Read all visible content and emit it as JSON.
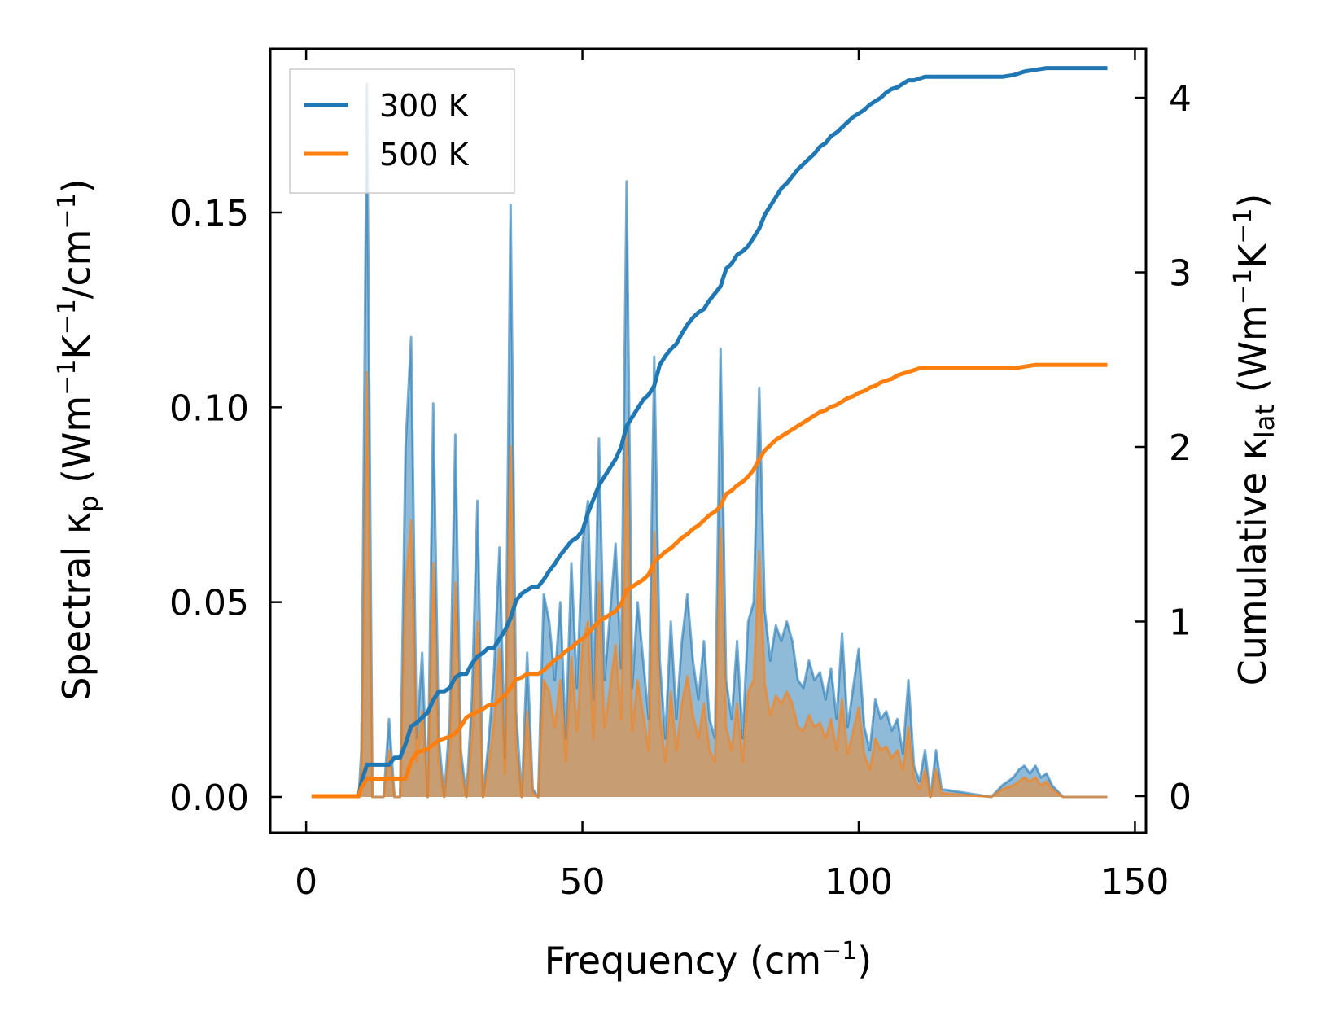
{
  "chart_data": {
    "type": "line",
    "xlabel_main": "Frequency (cm",
    "xlabel_sup": "−1",
    "xlabel_end": ")",
    "ylabel_left_prefix": "Spectral κ",
    "ylabel_left_sub": "p",
    "ylabel_left_mid": " (Wm",
    "ylabel_left_sup1": "−1",
    "ylabel_left_k": "K",
    "ylabel_left_sup2": "−1",
    "ylabel_left_slash": "/cm",
    "ylabel_left_sup3": "−1",
    "ylabel_left_end": ")",
    "ylabel_right_prefix": "Cumulative κ",
    "ylabel_right_sub": "lat",
    "ylabel_right_mid": " (Wm",
    "ylabel_right_sup1": "−1",
    "ylabel_right_k": "K",
    "ylabel_right_sup2": "−1",
    "ylabel_right_end": ")",
    "xlim": [
      -6.5,
      152
    ],
    "ylim_left": [
      -0.0092,
      0.192
    ],
    "ylim_right": [
      -0.21,
      4.28
    ],
    "xticks": [
      0,
      50,
      100,
      150
    ],
    "xtick_labels": [
      "0",
      "50",
      "100",
      "150"
    ],
    "yticks_left": [
      0,
      0.05,
      0.1,
      0.15
    ],
    "ytick_labels_left": [
      "0.00",
      "0.05",
      "0.10",
      "0.15"
    ],
    "yticks_right": [
      0,
      1,
      2,
      3,
      4
    ],
    "ytick_labels_right": [
      "0",
      "1",
      "2",
      "3",
      "4"
    ],
    "legend_position": "top-left",
    "series": [
      {
        "name": "300 K",
        "color": "#1f77b4",
        "spectral": {
          "x": [
            1,
            9.5,
            10,
            11,
            12,
            14,
            15,
            16,
            17,
            18,
            19,
            20,
            21,
            22,
            23,
            24,
            25,
            26,
            27,
            28,
            29,
            30,
            31,
            32,
            33,
            34,
            35,
            36,
            37,
            38,
            39,
            40,
            41,
            42,
            43,
            44,
            45,
            46,
            47,
            48,
            49,
            50,
            51,
            52,
            53,
            54,
            55,
            56,
            57,
            58,
            59,
            60,
            61,
            62,
            63,
            64,
            65,
            66,
            67,
            68,
            69,
            70,
            71,
            72,
            73,
            74,
            75,
            76,
            77,
            78,
            79,
            80,
            81,
            82,
            83,
            84,
            85,
            86,
            87,
            88,
            89,
            90,
            91,
            92,
            93,
            94,
            95,
            96,
            97,
            98,
            99,
            100,
            101,
            102,
            103,
            104,
            105,
            106,
            107,
            108,
            109,
            110,
            111,
            112,
            113,
            114,
            115,
            124,
            126,
            128,
            129,
            130,
            131,
            132,
            133,
            134,
            135,
            137,
            145
          ],
          "y": [
            0,
            0,
            0.012,
            0.183,
            0,
            0,
            0.02,
            0,
            0,
            0.09,
            0.118,
            0.015,
            0.037,
            0,
            0.101,
            0.015,
            0,
            0.02,
            0.093,
            0.012,
            0,
            0.025,
            0.076,
            0,
            0.014,
            0.032,
            0.064,
            0.01,
            0.152,
            0.022,
            0,
            0.037,
            0.002,
            0,
            0.052,
            0.045,
            0.03,
            0.05,
            0.015,
            0.06,
            0.028,
            0.065,
            0.076,
            0.025,
            0.092,
            0.03,
            0.047,
            0.065,
            0.033,
            0.158,
            0.028,
            0.05,
            0.035,
            0.02,
            0.113,
            0.035,
            0.015,
            0.045,
            0.02,
            0.04,
            0.052,
            0.035,
            0.025,
            0.04,
            0.02,
            0.015,
            0.115,
            0.03,
            0.02,
            0.04,
            0.015,
            0.045,
            0.05,
            0.105,
            0.048,
            0.035,
            0.044,
            0.04,
            0.045,
            0.04,
            0.03,
            0.028,
            0.035,
            0.03,
            0.032,
            0.025,
            0.033,
            0.02,
            0.042,
            0.018,
            0.028,
            0.038,
            0.018,
            0.012,
            0.025,
            0.02,
            0.022,
            0.017,
            0.02,
            0.011,
            0.03,
            0.008,
            0.004,
            0.012,
            0,
            0.012,
            0.002,
            0,
            0.003,
            0.005,
            0.007,
            0.008,
            0.006,
            0.008,
            0.005,
            0.006,
            0.003,
            0,
            0
          ]
        },
        "cumulative": {
          "x": [
            1,
            9.5,
            10,
            11,
            15,
            16,
            17,
            18,
            19,
            20,
            21,
            22,
            23,
            24,
            25,
            26,
            27,
            28,
            29,
            30,
            31,
            32,
            33,
            34,
            35,
            36,
            37,
            38,
            39,
            40,
            41,
            42,
            43,
            44,
            45,
            46,
            47,
            48,
            49,
            50,
            51,
            52,
            53,
            54,
            55,
            56,
            57,
            58,
            59,
            60,
            61,
            62,
            63,
            64,
            65,
            66,
            67,
            68,
            69,
            70,
            71,
            72,
            73,
            74,
            75,
            76,
            77,
            78,
            79,
            80,
            81,
            82,
            83,
            84,
            85,
            86,
            87,
            88,
            89,
            90,
            91,
            92,
            93,
            94,
            95,
            96,
            97,
            98,
            99,
            100,
            101,
            102,
            103,
            104,
            105,
            106,
            107,
            108,
            109,
            110,
            111,
            112,
            113,
            114,
            115,
            124,
            126,
            128,
            130,
            132,
            134,
            136,
            145
          ],
          "y": [
            0,
            0,
            0.08,
            0.18,
            0.18,
            0.22,
            0.22,
            0.3,
            0.4,
            0.42,
            0.45,
            0.48,
            0.55,
            0.6,
            0.6,
            0.62,
            0.68,
            0.7,
            0.7,
            0.76,
            0.8,
            0.82,
            0.85,
            0.85,
            0.9,
            0.95,
            1.02,
            1.12,
            1.16,
            1.18,
            1.2,
            1.2,
            1.24,
            1.29,
            1.33,
            1.38,
            1.42,
            1.46,
            1.48,
            1.52,
            1.62,
            1.7,
            1.78,
            1.83,
            1.88,
            1.93,
            2.0,
            2.12,
            2.17,
            2.22,
            2.27,
            2.3,
            2.35,
            2.47,
            2.52,
            2.56,
            2.59,
            2.65,
            2.7,
            2.74,
            2.77,
            2.79,
            2.84,
            2.88,
            2.92,
            3.02,
            3.05,
            3.1,
            3.12,
            3.15,
            3.2,
            3.25,
            3.33,
            3.38,
            3.43,
            3.48,
            3.51,
            3.55,
            3.59,
            3.62,
            3.65,
            3.68,
            3.72,
            3.74,
            3.78,
            3.8,
            3.83,
            3.86,
            3.89,
            3.91,
            3.93,
            3.96,
            3.98,
            4.0,
            4.03,
            4.05,
            4.06,
            4.08,
            4.1,
            4.1,
            4.11,
            4.12,
            4.12,
            4.12,
            4.12,
            4.12,
            4.12,
            4.13,
            4.15,
            4.16,
            4.17,
            4.17,
            4.17
          ]
        }
      },
      {
        "name": "500 K",
        "color": "#ff7f0e",
        "spectral": {
          "x": [
            1,
            9.5,
            10,
            11,
            12,
            14,
            15,
            16,
            17,
            18,
            19,
            20,
            21,
            22,
            23,
            24,
            25,
            26,
            27,
            28,
            29,
            30,
            31,
            32,
            33,
            34,
            35,
            36,
            37,
            38,
            39,
            40,
            41,
            42,
            43,
            44,
            45,
            46,
            47,
            48,
            49,
            50,
            51,
            52,
            53,
            54,
            55,
            56,
            57,
            58,
            59,
            60,
            61,
            62,
            63,
            64,
            65,
            66,
            67,
            68,
            69,
            70,
            71,
            72,
            73,
            74,
            75,
            76,
            77,
            78,
            79,
            80,
            81,
            82,
            83,
            84,
            85,
            86,
            87,
            88,
            89,
            90,
            91,
            92,
            93,
            94,
            95,
            96,
            97,
            98,
            99,
            100,
            101,
            102,
            103,
            104,
            105,
            106,
            107,
            108,
            109,
            110,
            111,
            112,
            113,
            114,
            115,
            124,
            126,
            128,
            129,
            130,
            131,
            132,
            133,
            134,
            135,
            137,
            145
          ],
          "y": [
            0,
            0,
            0.007,
            0.109,
            0,
            0,
            0.012,
            0,
            0,
            0.055,
            0.071,
            0.009,
            0.022,
            0,
            0.06,
            0.009,
            0,
            0.012,
            0.055,
            0.007,
            0,
            0.015,
            0.045,
            0,
            0.008,
            0.019,
            0.038,
            0.006,
            0.09,
            0.013,
            0,
            0.022,
            0.001,
            0,
            0.03,
            0.027,
            0.018,
            0.03,
            0.009,
            0.036,
            0.017,
            0.039,
            0.045,
            0.015,
            0.055,
            0.018,
            0.028,
            0.039,
            0.02,
            0.095,
            0.017,
            0.03,
            0.021,
            0.012,
            0.068,
            0.021,
            0.009,
            0.027,
            0.012,
            0.024,
            0.031,
            0.021,
            0.015,
            0.024,
            0.012,
            0.009,
            0.069,
            0.018,
            0.012,
            0.024,
            0.009,
            0.027,
            0.03,
            0.063,
            0.029,
            0.021,
            0.026,
            0.024,
            0.027,
            0.024,
            0.018,
            0.017,
            0.021,
            0.018,
            0.019,
            0.015,
            0.02,
            0.012,
            0.025,
            0.011,
            0.017,
            0.023,
            0.011,
            0.007,
            0.015,
            0.012,
            0.013,
            0.01,
            0.012,
            0.007,
            0.018,
            0.005,
            0.002,
            0.007,
            0,
            0.007,
            0.001,
            0,
            0.002,
            0.003,
            0.004,
            0.005,
            0.004,
            0.005,
            0.003,
            0.004,
            0.002,
            0,
            0
          ]
        },
        "cumulative": {
          "x": [
            1,
            9.5,
            10,
            11,
            18,
            19,
            20,
            22,
            24,
            26,
            27,
            28,
            29,
            30,
            32,
            33,
            34,
            35,
            36,
            37,
            38,
            39,
            40,
            42,
            43,
            44,
            45,
            46,
            47,
            48,
            49,
            50,
            51,
            52,
            53,
            54,
            55,
            56,
            57,
            58,
            59,
            60,
            61,
            62,
            63,
            64,
            65,
            66,
            67,
            68,
            69,
            70,
            71,
            72,
            73,
            74,
            75,
            76,
            77,
            78,
            79,
            80,
            81,
            82,
            83,
            84,
            85,
            86,
            87,
            88,
            89,
            90,
            91,
            92,
            93,
            94,
            95,
            96,
            97,
            98,
            99,
            100,
            101,
            102,
            103,
            104,
            105,
            106,
            107,
            108,
            109,
            110,
            111,
            112,
            113,
            114,
            115,
            124,
            126,
            128,
            130,
            132,
            134,
            136,
            145
          ],
          "y": [
            0,
            0,
            0.05,
            0.1,
            0.1,
            0.2,
            0.25,
            0.27,
            0.32,
            0.34,
            0.36,
            0.4,
            0.45,
            0.47,
            0.5,
            0.52,
            0.52,
            0.55,
            0.58,
            0.62,
            0.67,
            0.68,
            0.7,
            0.7,
            0.72,
            0.75,
            0.78,
            0.8,
            0.83,
            0.85,
            0.88,
            0.9,
            0.93,
            0.97,
            1.0,
            1.02,
            1.04,
            1.06,
            1.1,
            1.18,
            1.2,
            1.22,
            1.24,
            1.27,
            1.34,
            1.37,
            1.4,
            1.42,
            1.45,
            1.48,
            1.5,
            1.53,
            1.55,
            1.58,
            1.61,
            1.63,
            1.66,
            1.73,
            1.75,
            1.78,
            1.8,
            1.83,
            1.87,
            1.93,
            1.98,
            2.01,
            2.04,
            2.06,
            2.08,
            2.1,
            2.12,
            2.14,
            2.16,
            2.18,
            2.2,
            2.21,
            2.23,
            2.24,
            2.26,
            2.28,
            2.29,
            2.31,
            2.32,
            2.34,
            2.35,
            2.37,
            2.38,
            2.39,
            2.41,
            2.42,
            2.43,
            2.44,
            2.45,
            2.45,
            2.45,
            2.45,
            2.45,
            2.45,
            2.45,
            2.45,
            2.46,
            2.47,
            2.47,
            2.47,
            2.47
          ]
        }
      }
    ]
  }
}
